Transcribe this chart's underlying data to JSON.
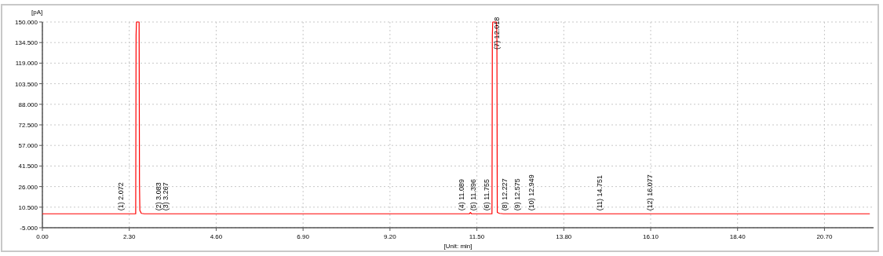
{
  "chart_data": {
    "type": "line",
    "xlabel": "[Unit: min]",
    "ylabel": "[pA]",
    "series": [
      {
        "color": "#ff0000",
        "x": [
          0,
          2.47,
          2.48,
          2.49,
          2.56,
          2.57,
          2.58,
          2.62,
          2.7,
          11.3,
          11.33,
          11.36,
          11.9,
          11.91,
          11.92,
          12.02,
          12.03,
          12.04,
          12.1,
          12.2,
          21.9
        ],
        "values": [
          5.5,
          5.5,
          140,
          150,
          150,
          28,
          8,
          5.8,
          5.5,
          5.5,
          6.5,
          5.5,
          5.5,
          140,
          150,
          150,
          140,
          6.5,
          5.8,
          5.5,
          5.5
        ]
      }
    ],
    "xlim": [
      0,
      22
    ],
    "xticks": [
      {
        "value": 0,
        "label": "0.00"
      },
      {
        "value": 2.3,
        "label": "2.30"
      },
      {
        "value": 4.6,
        "label": "4.60"
      },
      {
        "value": 6.9,
        "label": "6.90"
      },
      {
        "value": 9.2,
        "label": "9.20"
      },
      {
        "value": 11.5,
        "label": "11.50"
      },
      {
        "value": 13.8,
        "label": "13.80"
      },
      {
        "value": 16.1,
        "label": "16.10"
      },
      {
        "value": 18.4,
        "label": "18.40"
      },
      {
        "value": 20.7,
        "label": "20.70"
      }
    ],
    "ylim": [
      -5,
      150
    ],
    "yticks": [
      {
        "value": -5,
        "label": "-5.000"
      },
      {
        "value": 10.5,
        "label": "10.500"
      },
      {
        "value": 26,
        "label": "26.000"
      },
      {
        "value": 41.5,
        "label": "41.500"
      },
      {
        "value": 57,
        "label": "57.000"
      },
      {
        "value": 72.5,
        "label": "72.500"
      },
      {
        "value": 88,
        "label": "88.000"
      },
      {
        "value": 103.5,
        "label": "103.500"
      },
      {
        "value": 119,
        "label": "119.000"
      },
      {
        "value": 134.5,
        "label": "134.500"
      },
      {
        "value": 150,
        "label": "150.000"
      }
    ],
    "grid": true,
    "line_style": "solid",
    "marker": "none",
    "annotations": [
      {
        "text": "(1) 2.072",
        "x": 2.072,
        "y": 5.5
      },
      {
        "text": "(2) 3.083",
        "x": 3.083,
        "y": 5.5
      },
      {
        "text": "(3) 3.267",
        "x": 3.267,
        "y": 5.5
      },
      {
        "text": "(4) 11.089",
        "x": 11.089,
        "y": 5.5
      },
      {
        "text": "(5) 11.396",
        "x": 11.396,
        "y": 5.5
      },
      {
        "text": "(6) 11.755",
        "x": 11.755,
        "y": 5.5
      },
      {
        "text": "(7) 12.018",
        "x": 12.018,
        "y": 127
      },
      {
        "text": "(8) 12.227",
        "x": 12.227,
        "y": 5.5
      },
      {
        "text": "(9) 12.575",
        "x": 12.575,
        "y": 5.5
      },
      {
        "text": "(10) 12.949",
        "x": 12.949,
        "y": 5.5
      },
      {
        "text": "(11) 14.751",
        "x": 14.751,
        "y": 5.5
      },
      {
        "text": "(12) 16.077",
        "x": 16.077,
        "y": 5.5
      }
    ]
  }
}
